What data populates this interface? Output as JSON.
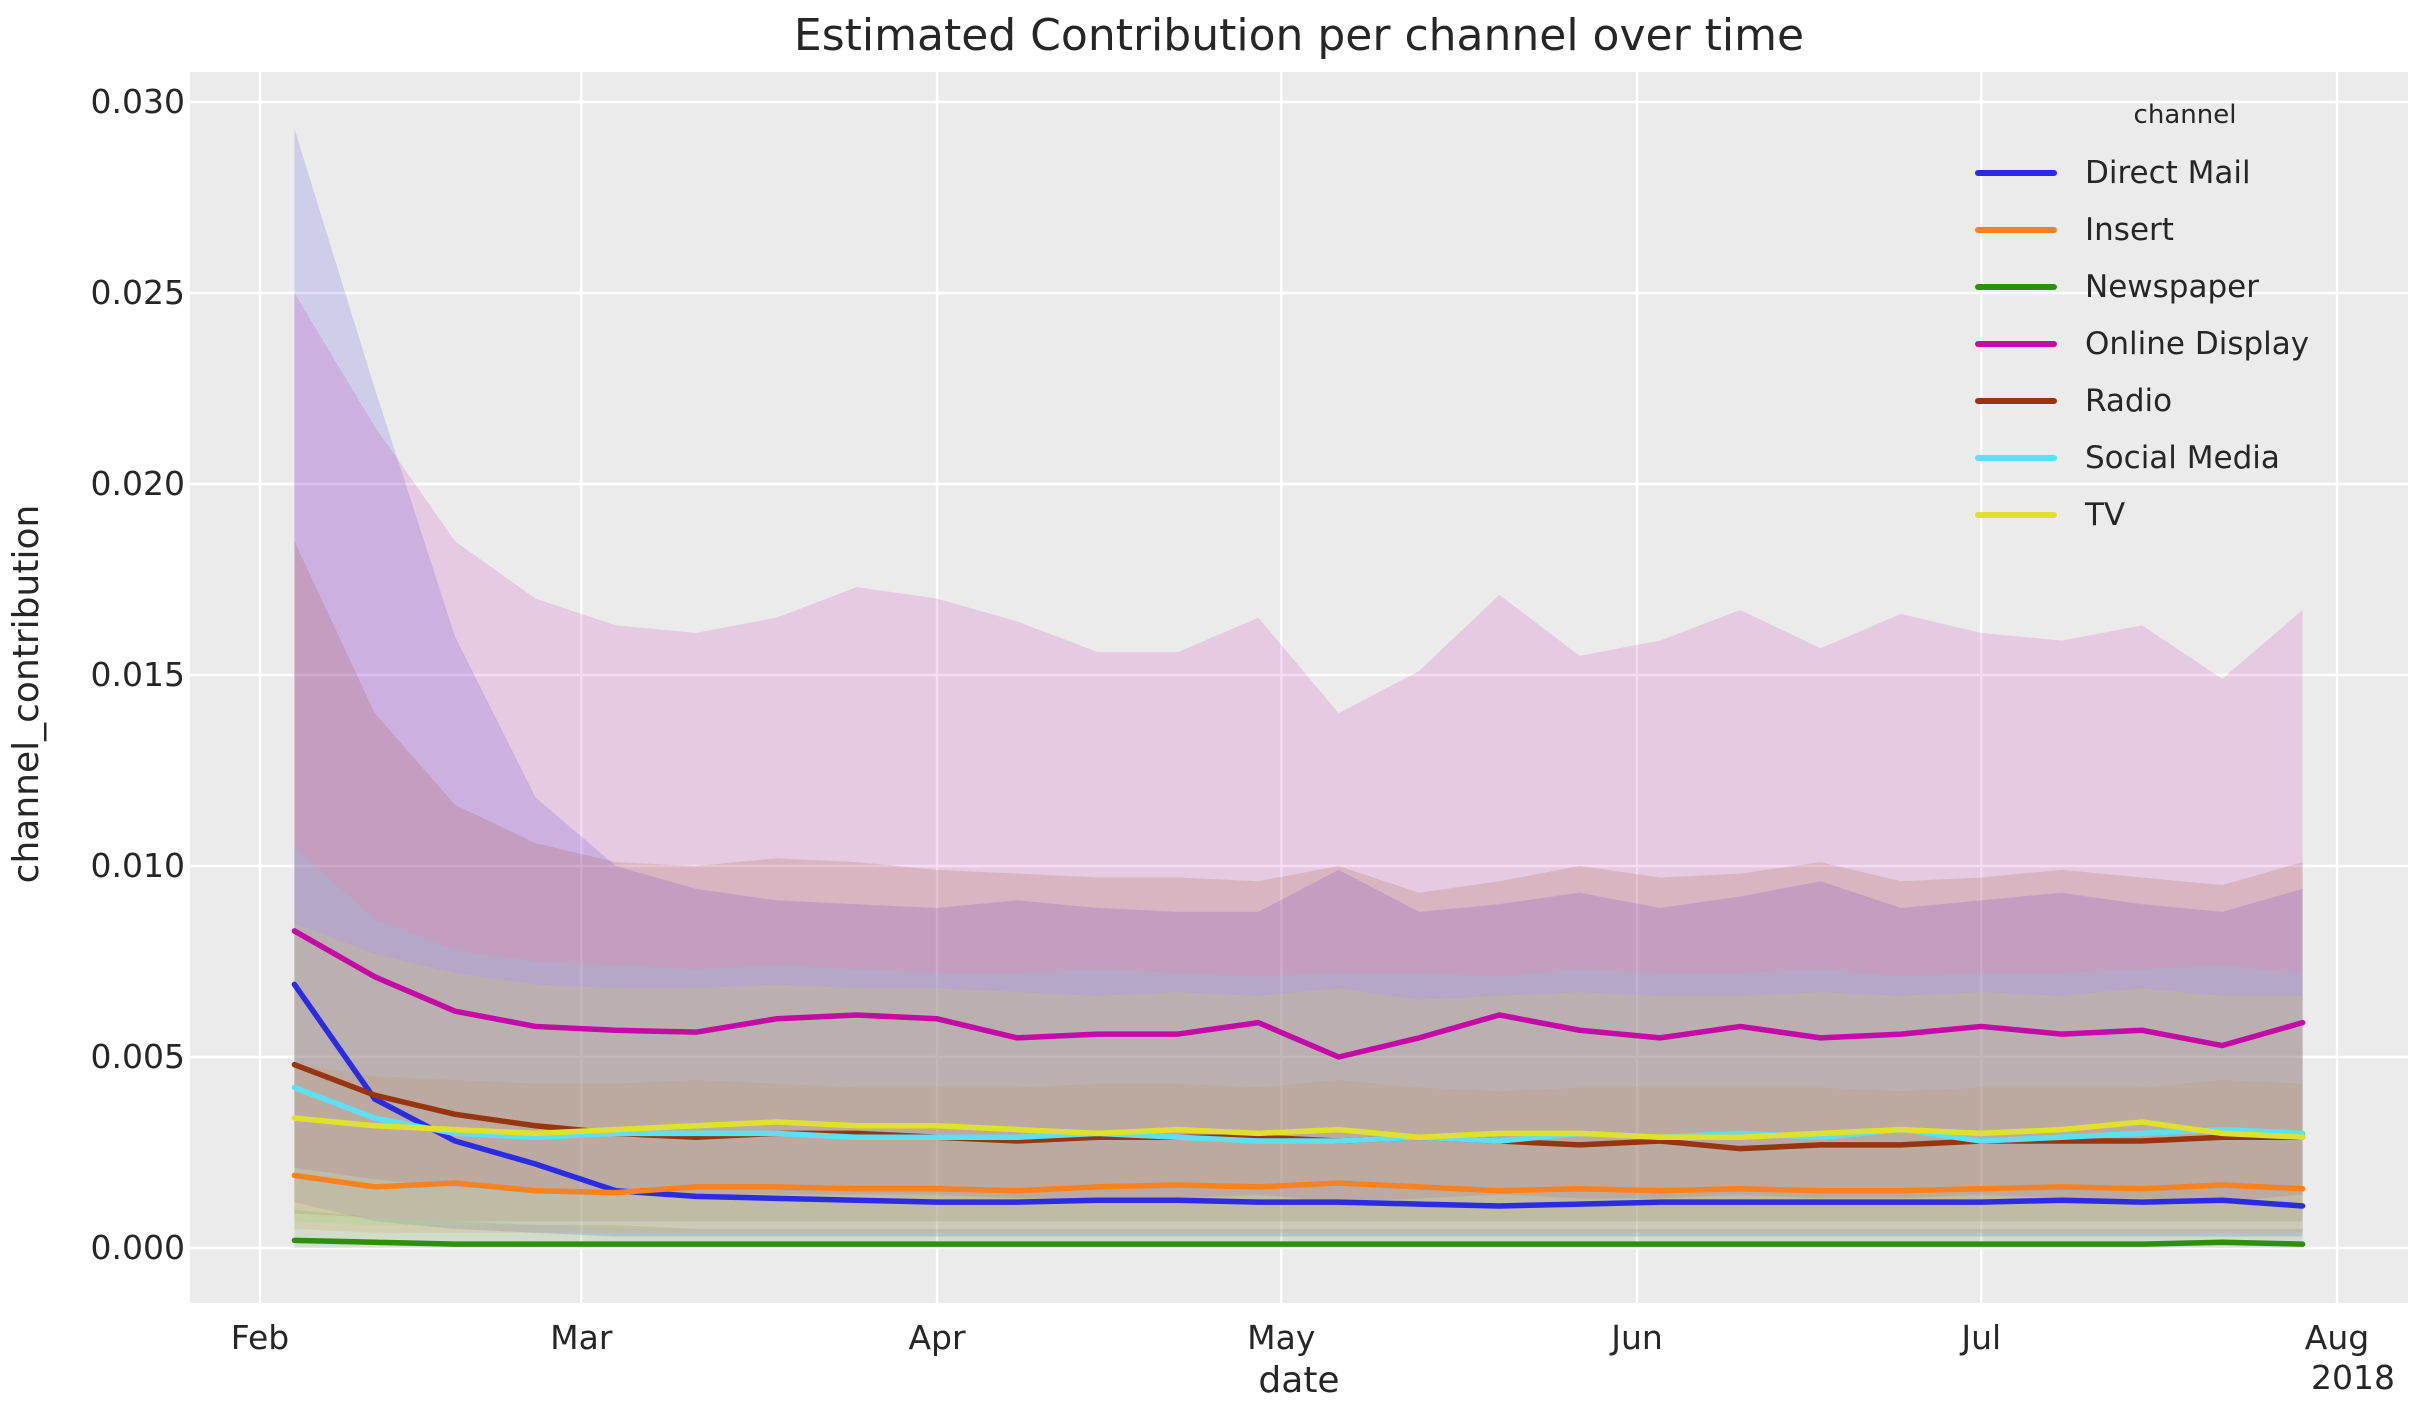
{
  "figure": {
    "title": "Estimated Contribution per channel over time"
  },
  "axes": {
    "x_ticks": [
      "Feb",
      "Mar",
      "Apr",
      "May",
      "Jun",
      "Jul",
      "Aug"
    ],
    "x_tick_day_offsets": [
      0,
      28,
      59,
      89,
      120,
      150,
      181
    ],
    "year_label": "2018",
    "y_ticks": [
      "0.000",
      "0.005",
      "0.010",
      "0.015",
      "0.020",
      "0.025",
      "0.030"
    ],
    "y_tick_values": [
      0.0,
      0.005,
      0.01,
      0.015,
      0.02,
      0.025,
      0.03
    ]
  },
  "legend": {
    "title": "channel",
    "position": "upper right"
  },
  "colors": {
    "figure_bg": "#ffffff",
    "plot_bg": "#ebebeb",
    "grid": "#ffffff",
    "text": "#262626"
  },
  "chart_data": {
    "type": "line",
    "title": "Estimated Contribution per channel over time",
    "xlabel": "date",
    "ylabel": "channel_contribution",
    "x_axis_range_days": [
      0,
      181
    ],
    "ylim": [
      -0.0014,
      0.0308
    ],
    "grid": true,
    "legend_position": "upper right",
    "x_dates": [
      "2018-02-04",
      "2018-02-11",
      "2018-02-18",
      "2018-02-25",
      "2018-03-04",
      "2018-03-11",
      "2018-03-18",
      "2018-03-25",
      "2018-04-01",
      "2018-04-08",
      "2018-04-15",
      "2018-04-22",
      "2018-04-29",
      "2018-05-06",
      "2018-05-13",
      "2018-05-20",
      "2018-05-27",
      "2018-06-03",
      "2018-06-10",
      "2018-06-17",
      "2018-06-24",
      "2018-07-01",
      "2018-07-08",
      "2018-07-15",
      "2018-07-22",
      "2018-07-29"
    ],
    "x_day_offsets": [
      3,
      10,
      17,
      24,
      31,
      38,
      45,
      52,
      59,
      66,
      73,
      80,
      87,
      94,
      101,
      108,
      115,
      122,
      129,
      136,
      143,
      150,
      157,
      164,
      171,
      178
    ],
    "series": [
      {
        "name": "Direct Mail",
        "color": "#2b2be2",
        "values": [
          0.0069,
          0.0039,
          0.0028,
          0.0022,
          0.0015,
          0.00135,
          0.0013,
          0.00125,
          0.0012,
          0.0012,
          0.00125,
          0.00125,
          0.0012,
          0.0012,
          0.00115,
          0.0011,
          0.00115,
          0.0012,
          0.0012,
          0.0012,
          0.0012,
          0.0012,
          0.00125,
          0.0012,
          0.00125,
          0.0011
        ],
        "ci_upper": [
          0.0293,
          0.0225,
          0.016,
          0.0118,
          0.01,
          0.0094,
          0.0091,
          0.009,
          0.0089,
          0.0091,
          0.0089,
          0.0088,
          0.0088,
          0.0099,
          0.0088,
          0.009,
          0.0093,
          0.0089,
          0.0092,
          0.0096,
          0.0089,
          0.0091,
          0.0093,
          0.009,
          0.0088,
          0.0094
        ],
        "ci_lower": [
          0.0012,
          0.0007,
          0.0005,
          0.0004,
          0.0003,
          0.0003,
          0.0003,
          0.0003,
          0.0003,
          0.0003,
          0.0003,
          0.0003,
          0.0003,
          0.0003,
          0.0003,
          0.0003,
          0.0003,
          0.0003,
          0.0003,
          0.0003,
          0.0003,
          0.0003,
          0.0003,
          0.0003,
          0.0003,
          0.0003
        ]
      },
      {
        "name": "Insert",
        "color": "#f8821f",
        "values": [
          0.0019,
          0.0016,
          0.0017,
          0.0015,
          0.00145,
          0.0016,
          0.0016,
          0.00155,
          0.00155,
          0.0015,
          0.0016,
          0.00165,
          0.0016,
          0.0017,
          0.0016,
          0.0015,
          0.00155,
          0.0015,
          0.00155,
          0.0015,
          0.0015,
          0.00155,
          0.0016,
          0.00155,
          0.00165,
          0.00155
        ],
        "ci_upper": [
          0.0048,
          0.0045,
          0.0044,
          0.0043,
          0.0043,
          0.0044,
          0.0043,
          0.0042,
          0.0042,
          0.0042,
          0.0043,
          0.0043,
          0.0042,
          0.0044,
          0.0042,
          0.0041,
          0.0042,
          0.0042,
          0.0042,
          0.0042,
          0.0041,
          0.0042,
          0.0042,
          0.0042,
          0.0044,
          0.0043
        ],
        "ci_lower": [
          0.0005,
          0.0004,
          0.0004,
          0.0004,
          0.0004,
          0.0004,
          0.0004,
          0.0004,
          0.0004,
          0.0004,
          0.0004,
          0.0004,
          0.0004,
          0.0004,
          0.0004,
          0.0004,
          0.0004,
          0.0004,
          0.0004,
          0.0004,
          0.0004,
          0.0004,
          0.0004,
          0.0004,
          0.0004,
          0.0004
        ]
      },
      {
        "name": "Newspaper",
        "color": "#2f8f0c",
        "values": [
          0.0002,
          0.00015,
          0.0001,
          0.0001,
          0.0001,
          0.0001,
          0.0001,
          0.0001,
          0.0001,
          0.0001,
          0.0001,
          0.0001,
          0.0001,
          0.0001,
          0.0001,
          0.0001,
          0.0001,
          0.0001,
          0.0001,
          0.0001,
          0.0001,
          0.0001,
          0.0001,
          0.0001,
          0.00015,
          0.0001
        ],
        "ci_upper": [
          0.001,
          0.0008,
          0.0007,
          0.0006,
          0.0006,
          0.0005,
          0.0005,
          0.0005,
          0.0005,
          0.0005,
          0.0005,
          0.0005,
          0.0005,
          0.0005,
          0.0005,
          0.0005,
          0.0005,
          0.0005,
          0.0005,
          0.0005,
          0.0005,
          0.0005,
          0.0005,
          0.0005,
          0.0005,
          0.0005
        ],
        "ci_lower": [
          0.0,
          0.0,
          0.0,
          0.0,
          0.0,
          0.0,
          0.0,
          0.0,
          0.0,
          0.0,
          0.0,
          0.0,
          0.0,
          0.0,
          0.0,
          0.0,
          0.0,
          0.0,
          0.0,
          0.0,
          0.0,
          0.0,
          0.0,
          0.0,
          0.0,
          0.0
        ]
      },
      {
        "name": "Online Display",
        "color": "#c40ba6",
        "values": [
          0.0083,
          0.0071,
          0.0062,
          0.0058,
          0.0057,
          0.00565,
          0.006,
          0.0061,
          0.006,
          0.0055,
          0.0056,
          0.0056,
          0.0059,
          0.005,
          0.0055,
          0.0061,
          0.0057,
          0.0055,
          0.0058,
          0.0055,
          0.0056,
          0.0058,
          0.0056,
          0.0057,
          0.0053,
          0.0059
        ],
        "ci_upper": [
          0.025,
          0.0215,
          0.0185,
          0.017,
          0.0163,
          0.0161,
          0.0165,
          0.0173,
          0.017,
          0.0164,
          0.0156,
          0.0156,
          0.0165,
          0.014,
          0.0151,
          0.0171,
          0.0155,
          0.0159,
          0.0167,
          0.0157,
          0.0166,
          0.0161,
          0.0159,
          0.0163,
          0.0149,
          0.0167
        ],
        "ci_lower": [
          0.0021,
          0.0018,
          0.0016,
          0.0015,
          0.0014,
          0.0014,
          0.0014,
          0.0014,
          0.0014,
          0.0013,
          0.0013,
          0.0013,
          0.0014,
          0.0012,
          0.0013,
          0.0014,
          0.0013,
          0.0013,
          0.0014,
          0.0013,
          0.0013,
          0.0014,
          0.0013,
          0.0013,
          0.0012,
          0.0014
        ]
      },
      {
        "name": "Radio",
        "color": "#96350f",
        "values": [
          0.0048,
          0.004,
          0.0035,
          0.0032,
          0.003,
          0.0029,
          0.003,
          0.003,
          0.0029,
          0.0028,
          0.0029,
          0.0029,
          0.0029,
          0.0028,
          0.0029,
          0.0028,
          0.0027,
          0.0028,
          0.0026,
          0.0027,
          0.0027,
          0.0028,
          0.0028,
          0.0028,
          0.0029,
          0.0029
        ],
        "ci_upper": [
          0.0185,
          0.014,
          0.0116,
          0.0106,
          0.0101,
          0.01,
          0.0102,
          0.0101,
          0.0099,
          0.0098,
          0.0097,
          0.0097,
          0.0096,
          0.01,
          0.0093,
          0.0096,
          0.01,
          0.0097,
          0.0098,
          0.0101,
          0.0096,
          0.0097,
          0.0099,
          0.0097,
          0.0095,
          0.0101
        ],
        "ci_lower": [
          0.0009,
          0.0008,
          0.0007,
          0.0007,
          0.0007,
          0.0007,
          0.0007,
          0.0007,
          0.0007,
          0.0007,
          0.0007,
          0.0007,
          0.0007,
          0.0007,
          0.0007,
          0.0007,
          0.0007,
          0.0007,
          0.0007,
          0.0007,
          0.0007,
          0.0007,
          0.0007,
          0.0007,
          0.0007,
          0.0007
        ]
      },
      {
        "name": "Social Media",
        "color": "#5edff2",
        "values": [
          0.0042,
          0.0034,
          0.003,
          0.0029,
          0.003,
          0.003,
          0.003,
          0.0029,
          0.0029,
          0.0029,
          0.003,
          0.0029,
          0.0028,
          0.0028,
          0.0029,
          0.0028,
          0.003,
          0.0029,
          0.003,
          0.0029,
          0.0031,
          0.0028,
          0.0029,
          0.003,
          0.0031,
          0.003
        ],
        "ci_upper": [
          0.0105,
          0.0086,
          0.0078,
          0.0075,
          0.0074,
          0.0073,
          0.0074,
          0.0073,
          0.0072,
          0.0072,
          0.0073,
          0.0072,
          0.0071,
          0.0072,
          0.0072,
          0.0071,
          0.0073,
          0.0072,
          0.0072,
          0.0073,
          0.0071,
          0.0072,
          0.0072,
          0.0073,
          0.0074,
          0.0072
        ],
        "ci_lower": [
          0.0007,
          0.0006,
          0.0006,
          0.0006,
          0.0006,
          0.0006,
          0.0006,
          0.0006,
          0.0006,
          0.0006,
          0.0006,
          0.0006,
          0.0006,
          0.0006,
          0.0006,
          0.0006,
          0.0006,
          0.0006,
          0.0006,
          0.0006,
          0.0006,
          0.0006,
          0.0006,
          0.0006,
          0.0006,
          0.0006
        ]
      },
      {
        "name": "TV",
        "color": "#e0e12f",
        "values": [
          0.0034,
          0.0032,
          0.0031,
          0.003,
          0.0031,
          0.0032,
          0.0033,
          0.0032,
          0.0032,
          0.0031,
          0.003,
          0.0031,
          0.003,
          0.0031,
          0.0029,
          0.003,
          0.003,
          0.0029,
          0.0029,
          0.003,
          0.0031,
          0.003,
          0.0031,
          0.0033,
          0.003,
          0.0029
        ],
        "ci_upper": [
          0.0085,
          0.0077,
          0.0072,
          0.0069,
          0.0068,
          0.0068,
          0.0069,
          0.0068,
          0.0068,
          0.0067,
          0.0066,
          0.0067,
          0.0066,
          0.0068,
          0.0065,
          0.0066,
          0.0067,
          0.0066,
          0.0066,
          0.0067,
          0.0066,
          0.0067,
          0.0066,
          0.0068,
          0.0066,
          0.0066
        ],
        "ci_lower": [
          0.0007,
          0.0006,
          0.0006,
          0.0006,
          0.0005,
          0.0005,
          0.0005,
          0.0005,
          0.0005,
          0.0005,
          0.0005,
          0.0005,
          0.0005,
          0.0005,
          0.0005,
          0.0005,
          0.0005,
          0.0005,
          0.0005,
          0.0005,
          0.0005,
          0.0005,
          0.0005,
          0.0005,
          0.0005,
          0.0005
        ]
      }
    ]
  }
}
